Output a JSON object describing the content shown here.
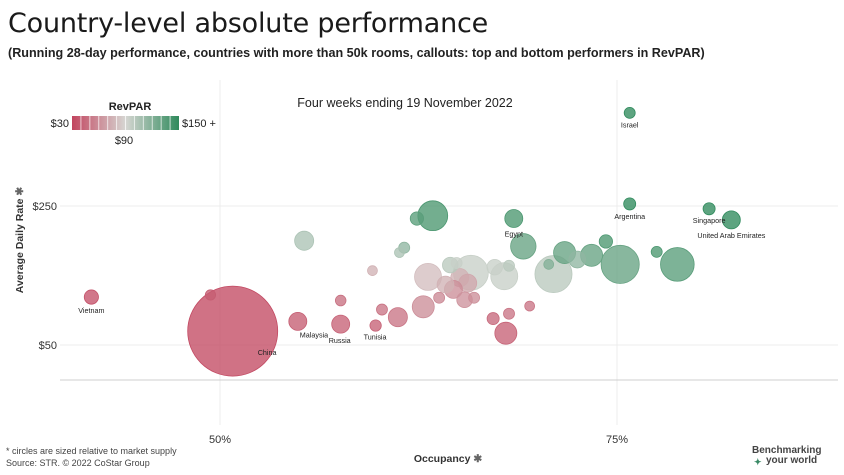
{
  "header": {
    "title": "Country-level absolute performance",
    "subtitle": "(Running 28-day performance, countries with more than 50k rooms, callouts: top and bottom performers in RevPAR)"
  },
  "footer": {
    "note": "* circles are sized relative to market supply",
    "source": "Source: STR. © 2022 CoStar Group",
    "brand_line1": "Benchmarking",
    "brand_line2": "your world"
  },
  "colors": {
    "low": "#c2455f",
    "mid": "#d6d6d2",
    "high": "#2f8a5c",
    "grid": "#ececec",
    "axis": "#cfcfcf"
  },
  "chart_data": {
    "type": "scatter",
    "title": "Four weeks ending 19 November 2022",
    "xlabel": "Occupancy",
    "ylabel": "Average Daily Rate",
    "x_ticks": [
      {
        "value": 50,
        "label": "50%"
      },
      {
        "value": 75,
        "label": "75%"
      }
    ],
    "y_ticks": [
      {
        "value": 50,
        "label": "$50"
      },
      {
        "value": 250,
        "label": "$250"
      }
    ],
    "xlim": [
      40,
      89
    ],
    "ylim": [
      -5,
      400
    ],
    "color_legend": {
      "title": "RevPAR",
      "min_label": "$30",
      "mid_label": "$90",
      "max_label": "$150 +",
      "min": 30,
      "max": 150
    },
    "points": [
      {
        "label": "Israel",
        "x": 75.8,
        "y": 384,
        "size": 1.5,
        "revpar": 160
      },
      {
        "label": "Argentina",
        "x": 75.8,
        "y": 253,
        "size": 1.8,
        "revpar": 150
      },
      {
        "label": "Singapore",
        "x": 80.8,
        "y": 246,
        "size": 1.8,
        "revpar": 150
      },
      {
        "label": "United Arab Emirates",
        "x": 82.2,
        "y": 230,
        "size": 4,
        "revpar": 150
      },
      {
        "label": "Egypt",
        "x": 68.5,
        "y": 232,
        "size": 4,
        "revpar": 140
      },
      {
        "label": "Vietnam",
        "x": 41.9,
        "y": 119,
        "size": 2.5,
        "revpar": 35
      },
      {
        "label": "China",
        "x": 50.8,
        "y": 70,
        "size": 100,
        "revpar": 32
      },
      {
        "label": "Malaysia",
        "x": 54.9,
        "y": 84,
        "size": 4,
        "revpar": 40
      },
      {
        "label": "Russia",
        "x": 57.6,
        "y": 80,
        "size": 4,
        "revpar": 42
      },
      {
        "label": "Tunisia",
        "x": 59.8,
        "y": 78,
        "size": 1.6,
        "revpar": 42
      },
      {
        "label": "",
        "x": 62.4,
        "y": 232,
        "size": 2.2,
        "revpar": 135
      },
      {
        "label": "",
        "x": 63.4,
        "y": 236,
        "size": 11,
        "revpar": 140
      },
      {
        "label": "",
        "x": 55.3,
        "y": 200,
        "size": 4.5,
        "revpar": 105
      },
      {
        "label": "",
        "x": 61.6,
        "y": 190,
        "size": 1.5,
        "revpar": 115
      },
      {
        "label": "",
        "x": 61.3,
        "y": 183,
        "size": 1.2,
        "revpar": 105
      },
      {
        "label": "",
        "x": 69.1,
        "y": 192,
        "size": 8,
        "revpar": 130
      },
      {
        "label": "",
        "x": 71.7,
        "y": 183,
        "size": 6,
        "revpar": 130
      },
      {
        "label": "",
        "x": 74.3,
        "y": 199,
        "size": 2.2,
        "revpar": 140
      },
      {
        "label": "",
        "x": 77.5,
        "y": 184,
        "size": 1.5,
        "revpar": 140
      },
      {
        "label": "",
        "x": 73.4,
        "y": 179,
        "size": 6,
        "revpar": 130
      },
      {
        "label": "",
        "x": 72.5,
        "y": 173,
        "size": 3.5,
        "revpar": 115
      },
      {
        "label": "",
        "x": 75.2,
        "y": 166,
        "size": 18,
        "revpar": 130
      },
      {
        "label": "",
        "x": 78.8,
        "y": 166,
        "size": 14,
        "revpar": 135
      },
      {
        "label": "",
        "x": 71.0,
        "y": 152,
        "size": 17,
        "revpar": 100
      },
      {
        "label": "",
        "x": 70.7,
        "y": 166,
        "size": 1.2,
        "revpar": 120
      },
      {
        "label": "",
        "x": 65.8,
        "y": 154,
        "size": 15,
        "revpar": 95
      },
      {
        "label": "",
        "x": 67.9,
        "y": 149,
        "size": 9,
        "revpar": 95
      },
      {
        "label": "",
        "x": 67.3,
        "y": 162,
        "size": 3,
        "revpar": 95
      },
      {
        "label": "",
        "x": 68.2,
        "y": 164,
        "size": 1.5,
        "revpar": 100
      },
      {
        "label": "",
        "x": 64.5,
        "y": 165,
        "size": 3,
        "revpar": 100
      },
      {
        "label": "",
        "x": 64.9,
        "y": 168,
        "size": 1.5,
        "revpar": 95
      },
      {
        "label": "",
        "x": 63.1,
        "y": 148,
        "size": 9,
        "revpar": 80
      },
      {
        "label": "",
        "x": 65.1,
        "y": 147,
        "size": 4,
        "revpar": 75
      },
      {
        "label": "",
        "x": 65.6,
        "y": 139,
        "size": 4,
        "revpar": 70
      },
      {
        "label": "",
        "x": 64.7,
        "y": 130,
        "size": 4,
        "revpar": 60
      },
      {
        "label": "",
        "x": 64.2,
        "y": 137,
        "size": 3.5,
        "revpar": 75
      },
      {
        "label": "",
        "x": 65.4,
        "y": 115,
        "size": 3,
        "revpar": 62
      },
      {
        "label": "",
        "x": 63.8,
        "y": 118,
        "size": 1.5,
        "revpar": 58
      },
      {
        "label": "",
        "x": 59.6,
        "y": 157,
        "size": 1.2,
        "revpar": 75
      },
      {
        "label": "",
        "x": 62.8,
        "y": 105,
        "size": 6,
        "revpar": 60
      },
      {
        "label": "",
        "x": 61.2,
        "y": 90,
        "size": 4.5,
        "revpar": 50
      },
      {
        "label": "",
        "x": 60.2,
        "y": 101,
        "size": 1.5,
        "revpar": 50
      },
      {
        "label": "",
        "x": 57.6,
        "y": 114,
        "size": 1.4,
        "revpar": 48
      },
      {
        "label": "",
        "x": 49.4,
        "y": 122,
        "size": 1.3,
        "revpar": 40
      },
      {
        "label": "",
        "x": 68.0,
        "y": 67,
        "size": 6,
        "revpar": 42
      },
      {
        "label": "",
        "x": 67.2,
        "y": 88,
        "size": 1.8,
        "revpar": 45
      },
      {
        "label": "",
        "x": 68.2,
        "y": 95,
        "size": 1.5,
        "revpar": 50
      },
      {
        "label": "",
        "x": 69.5,
        "y": 106,
        "size": 1.2,
        "revpar": 50
      },
      {
        "label": "",
        "x": 66.0,
        "y": 118,
        "size": 1.5,
        "revpar": 60
      }
    ]
  }
}
